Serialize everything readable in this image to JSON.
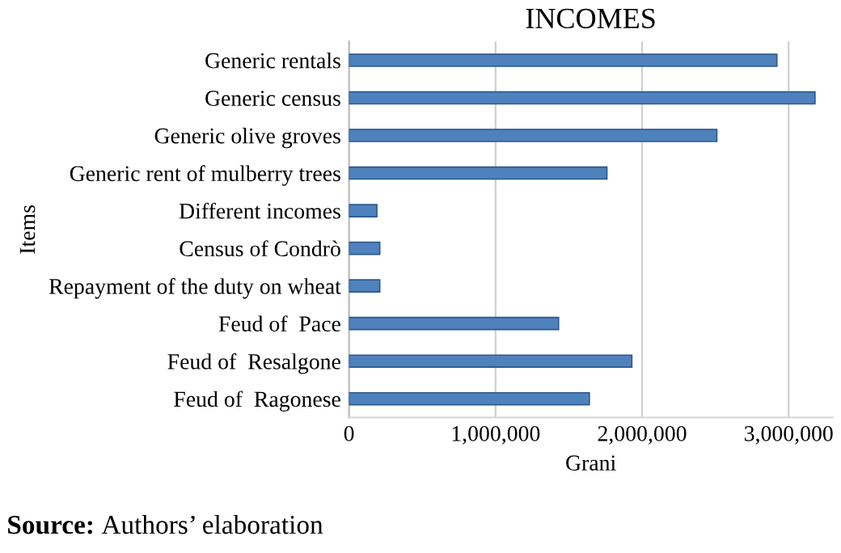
{
  "chart_data": {
    "type": "bar",
    "orientation": "horizontal",
    "title": "INCOMES",
    "xlabel": "Grani",
    "ylabel": "Items",
    "categories": [
      "Generic rentals",
      "Generic census",
      "Generic olive groves",
      "Generic rent of mulberry trees",
      "Different incomes",
      "Census of Condrò",
      "Repayment of the duty on wheat",
      "Feud of  Pace",
      "Feud of  Resalgone",
      "Feud of  Ragonese"
    ],
    "values": [
      2920000,
      3180000,
      2510000,
      1760000,
      190000,
      210000,
      210000,
      1430000,
      1930000,
      1640000
    ],
    "color": "#4f81bd",
    "xlim": [
      0,
      3300000
    ],
    "xticks": [
      {
        "value": 0,
        "label": "0"
      },
      {
        "value": 1000000,
        "label": "1,000,000"
      },
      {
        "value": 2000000,
        "label": "2,000,000"
      },
      {
        "value": 3000000,
        "label": "3,000,000"
      }
    ],
    "grid": "x",
    "annotations": [
      "Source: Authors’ elaboration"
    ]
  }
}
